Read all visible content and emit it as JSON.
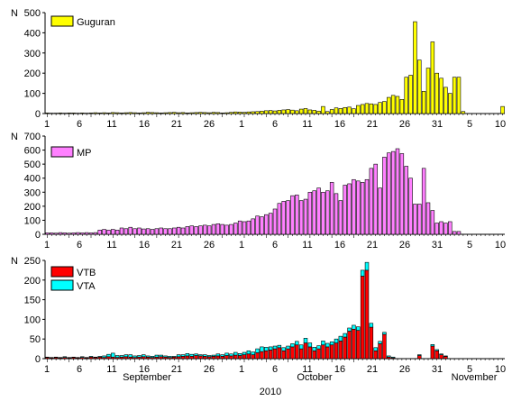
{
  "chart_data": [
    {
      "type": "bar",
      "ylabel": "N",
      "ylim": [
        0,
        500
      ],
      "yticks": [
        0,
        100,
        200,
        300,
        400,
        500
      ],
      "xticks": [
        "1",
        "6",
        "11",
        "16",
        "21",
        "26",
        "1",
        "6",
        "11",
        "16",
        "21",
        "26",
        "31",
        "5",
        "10"
      ],
      "series": [
        {
          "name": "Guguran",
          "color": "#ffff00",
          "values": [
            3,
            2,
            2,
            3,
            2,
            3,
            3,
            2,
            3,
            2,
            3,
            4,
            3,
            4,
            3,
            5,
            4,
            3,
            4,
            5,
            4,
            3,
            4,
            6,
            5,
            4,
            3,
            4,
            5,
            6,
            4,
            5,
            3,
            4,
            5,
            6,
            5,
            4,
            6,
            5,
            3,
            4,
            6,
            8,
            7,
            6,
            8,
            9,
            10,
            12,
            14,
            15,
            13,
            16,
            18,
            20,
            17,
            14,
            22,
            25,
            18,
            16,
            12,
            35,
            10,
            20,
            28,
            25,
            30,
            32,
            24,
            40,
            45,
            50,
            48,
            45,
            55,
            60,
            80,
            90,
            85,
            70,
            180,
            190,
            455,
            265,
            110,
            225,
            355,
            200,
            175,
            130,
            100,
            180,
            180,
            10,
            0,
            0,
            0,
            0,
            0,
            0,
            0,
            0,
            35
          ]
        }
      ]
    },
    {
      "type": "bar",
      "ylabel": "N",
      "ylim": [
        0,
        700
      ],
      "yticks": [
        0,
        100,
        200,
        300,
        400,
        500,
        600,
        700
      ],
      "xticks": [
        "1",
        "6",
        "11",
        "16",
        "21",
        "26",
        "1",
        "6",
        "11",
        "16",
        "21",
        "26",
        "31",
        "5",
        "10"
      ],
      "series": [
        {
          "name": "MP",
          "color": "#ff80ff",
          "values": [
            10,
            10,
            8,
            12,
            10,
            8,
            10,
            12,
            10,
            12,
            10,
            12,
            30,
            35,
            30,
            35,
            30,
            45,
            40,
            50,
            40,
            45,
            38,
            40,
            35,
            40,
            45,
            40,
            40,
            45,
            50,
            45,
            55,
            60,
            55,
            60,
            65,
            60,
            70,
            75,
            70,
            65,
            70,
            80,
            95,
            90,
            95,
            110,
            130,
            125,
            140,
            150,
            180,
            220,
            235,
            240,
            275,
            280,
            240,
            250,
            300,
            310,
            330,
            300,
            310,
            370,
            290,
            240,
            350,
            360,
            390,
            380,
            370,
            390,
            470,
            500,
            330,
            550,
            580,
            590,
            610,
            575,
            485,
            400,
            215,
            215,
            470,
            225,
            170,
            80,
            90,
            80,
            90,
            20,
            20,
            0,
            0,
            0,
            0,
            0,
            0,
            0,
            0,
            0,
            0
          ]
        }
      ]
    },
    {
      "type": "bar",
      "ylabel": "N",
      "ylim": [
        0,
        250
      ],
      "yticks": [
        0,
        50,
        100,
        150,
        200,
        250
      ],
      "xticks": [
        "1",
        "6",
        "11",
        "16",
        "21",
        "26",
        "1",
        "6",
        "11",
        "16",
        "21",
        "26",
        "31",
        "5",
        "10"
      ],
      "xlabel_months": [
        "September",
        "October",
        "November"
      ],
      "xlabel_year": "2010",
      "series": [
        {
          "name": "VTB",
          "color": "#ff0000",
          "values": [
            3,
            2,
            3,
            2,
            3,
            2,
            3,
            2,
            3,
            2,
            4,
            3,
            4,
            3,
            5,
            4,
            3,
            4,
            5,
            4,
            3,
            4,
            5,
            4,
            3,
            4,
            5,
            4,
            3,
            4,
            5,
            6,
            7,
            6,
            8,
            7,
            6,
            5,
            6,
            7,
            6,
            8,
            7,
            9,
            8,
            10,
            12,
            10,
            15,
            18,
            20,
            22,
            25,
            28,
            20,
            25,
            30,
            35,
            25,
            40,
            30,
            20,
            25,
            35,
            30,
            35,
            40,
            45,
            55,
            70,
            75,
            72,
            210,
            225,
            80,
            20,
            38,
            62,
            4,
            2,
            0,
            0,
            0,
            0,
            0,
            8,
            0,
            0,
            32,
            20,
            10,
            6,
            0,
            0,
            0,
            0,
            0,
            0,
            0,
            0,
            0,
            0,
            0,
            0,
            0
          ]
        },
        {
          "name": "VTA",
          "color": "#00ffff",
          "values": [
            1,
            1,
            1,
            1,
            2,
            1,
            1,
            1,
            2,
            1,
            2,
            1,
            2,
            4,
            6,
            10,
            5,
            4,
            5,
            6,
            4,
            4,
            5,
            3,
            3,
            5,
            4,
            3,
            3,
            2,
            5,
            4,
            6,
            5,
            4,
            3,
            4,
            3,
            3,
            5,
            4,
            6,
            5,
            7,
            5,
            6,
            8,
            7,
            10,
            12,
            9,
            8,
            7,
            6,
            8,
            7,
            8,
            9,
            10,
            12,
            10,
            9,
            8,
            10,
            9,
            8,
            10,
            12,
            9,
            8,
            10,
            9,
            15,
            20,
            10,
            8,
            6,
            5,
            3,
            2,
            0,
            0,
            0,
            0,
            0,
            2,
            0,
            0,
            4,
            3,
            2,
            1,
            0,
            0,
            0,
            0,
            0,
            0,
            0,
            0,
            0,
            0,
            0,
            0,
            0
          ]
        }
      ]
    }
  ]
}
